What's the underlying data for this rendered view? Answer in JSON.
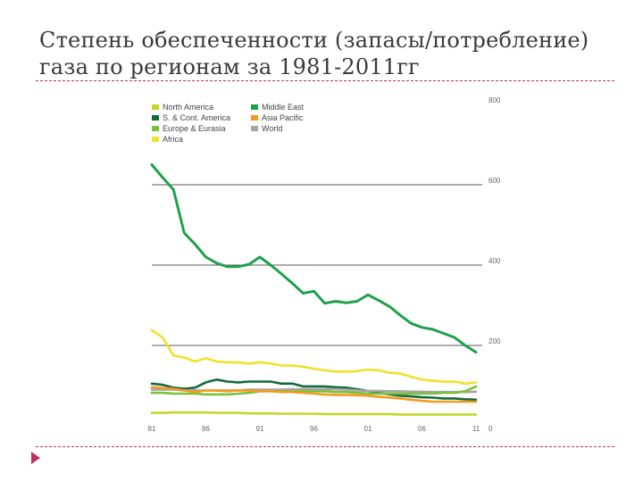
{
  "slide": {
    "title_line1": "Степень обеспеченности (запасы/потребление)",
    "title_line2": "газа по регионам за 1981-2011гг"
  },
  "chart_data": {
    "type": "line",
    "title": "",
    "xlabel": "",
    "ylabel": "",
    "x": [
      1981,
      1982,
      1983,
      1984,
      1985,
      1986,
      1987,
      1988,
      1989,
      1990,
      1991,
      1992,
      1993,
      1994,
      1995,
      1996,
      1997,
      1998,
      1999,
      2000,
      2001,
      2002,
      2003,
      2004,
      2005,
      2006,
      2007,
      2008,
      2009,
      2010,
      2011
    ],
    "xticks": [
      {
        "value": 1981,
        "label": "81"
      },
      {
        "value": 1986,
        "label": "86"
      },
      {
        "value": 1991,
        "label": "91"
      },
      {
        "value": 1996,
        "label": "96"
      },
      {
        "value": 2001,
        "label": "01"
      },
      {
        "value": 2006,
        "label": "06"
      },
      {
        "value": 2011,
        "label": "11"
      }
    ],
    "yticks": [
      {
        "value": 800,
        "label": "800"
      },
      {
        "value": 600,
        "label": "600"
      },
      {
        "value": 400,
        "label": "400"
      },
      {
        "value": 200,
        "label": "200"
      },
      {
        "value": 0,
        "label": "0"
      }
    ],
    "xlim": [
      1981,
      2011
    ],
    "ylim": [
      0,
      800
    ],
    "gridlines": [
      600,
      400,
      200
    ],
    "legend_position": "top-left",
    "series": [
      {
        "name": "Middle East",
        "color": "#1fa04a",
        "values": [
          650,
          618,
          588,
          480,
          452,
          420,
          405,
          396,
          396,
          402,
          420,
          400,
          378,
          355,
          330,
          335,
          305,
          310,
          306,
          310,
          326,
          312,
          297,
          275,
          255,
          245,
          240,
          230,
          220,
          200,
          183
        ]
      },
      {
        "name": "Africa",
        "color": "#f0e12a",
        "values": [
          238,
          220,
          175,
          170,
          160,
          168,
          160,
          158,
          158,
          155,
          158,
          155,
          150,
          150,
          147,
          142,
          138,
          135,
          135,
          136,
          140,
          138,
          132,
          130,
          122,
          115,
          112,
          110,
          110,
          105,
          108
        ]
      },
      {
        "name": "S. & Cont. America",
        "color": "#146a3c",
        "values": [
          105,
          102,
          95,
          92,
          95,
          108,
          115,
          110,
          108,
          110,
          110,
          110,
          105,
          105,
          98,
          98,
          98,
          96,
          95,
          91,
          87,
          82,
          78,
          75,
          73,
          71,
          70,
          68,
          68,
          66,
          65
        ]
      },
      {
        "name": "World",
        "color": "#a6a6a6",
        "values": [
          90,
          90,
          90,
          88,
          88,
          88,
          88,
          88,
          88,
          90,
          90,
          90,
          90,
          91,
          91,
          91,
          91,
          91,
          90,
          88,
          87,
          87,
          86,
          86,
          85,
          85,
          84,
          84,
          84,
          84,
          85
        ]
      },
      {
        "name": "Europe & Eurasia",
        "color": "#7bbf3a",
        "values": [
          82,
          82,
          80,
          80,
          80,
          78,
          78,
          78,
          80,
          82,
          86,
          86,
          86,
          86,
          86,
          86,
          86,
          84,
          84,
          82,
          80,
          80,
          80,
          80,
          80,
          80,
          80,
          82,
          82,
          86,
          98
        ]
      },
      {
        "name": "Asia Pacific",
        "color": "#f39b1e",
        "values": [
          96,
          94,
          92,
          88,
          84,
          88,
          88,
          86,
          88,
          88,
          86,
          86,
          84,
          84,
          82,
          80,
          78,
          77,
          77,
          76,
          75,
          72,
          70,
          68,
          65,
          62,
          60,
          60,
          60,
          60,
          60
        ]
      },
      {
        "name": "North America",
        "color": "#c3d72e",
        "values": [
          32,
          32,
          33,
          33,
          33,
          33,
          32,
          32,
          32,
          31,
          31,
          31,
          30,
          30,
          30,
          30,
          29,
          29,
          29,
          29,
          29,
          29,
          29,
          28,
          28,
          28,
          28,
          28,
          28,
          28,
          28
        ]
      }
    ],
    "legend": [
      {
        "name": "North America",
        "color": "#c3d72e"
      },
      {
        "name": "S. & Cont. America",
        "color": "#146a3c"
      },
      {
        "name": "Europe & Eurasia",
        "color": "#7bbf3a"
      },
      {
        "name": "Africa",
        "color": "#f0e12a"
      },
      {
        "name": "Middle East",
        "color": "#1fa04a"
      },
      {
        "name": "Asia Pacific",
        "color": "#f39b1e"
      },
      {
        "name": "World",
        "color": "#a6a6a6"
      }
    ]
  }
}
